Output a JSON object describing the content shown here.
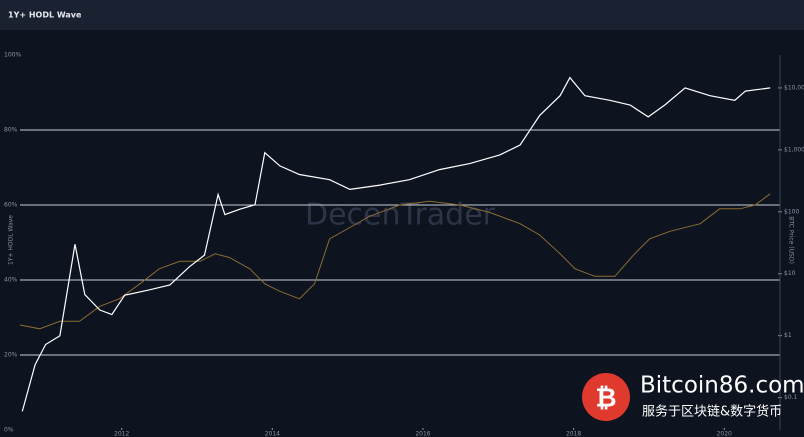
{
  "chart_data": {
    "type": "line",
    "title": "1Y+ HODL Wave",
    "y_label": "1Y+ HODL Wave",
    "y2_label": "BTC Price (USD)",
    "xlim": [
      2010.65,
      2020.74
    ],
    "xticks": [
      2012,
      2014,
      2016,
      2018,
      2020
    ],
    "ylim": [
      0,
      100
    ],
    "yticks": [
      {
        "value": 0,
        "label": "0%"
      },
      {
        "value": 20,
        "label": "20%"
      },
      {
        "value": 40,
        "label": "40%"
      },
      {
        "value": 60,
        "label": "60%"
      },
      {
        "value": 80,
        "label": "80%"
      },
      {
        "value": 100,
        "label": "100%"
      }
    ],
    "y2lim": [
      0.03,
      34000
    ],
    "y2log": true,
    "y2ticks": [
      {
        "value": 0.1,
        "label": "$0.1"
      },
      {
        "value": 1,
        "label": "$1"
      },
      {
        "value": 10,
        "label": "$10"
      },
      {
        "value": 100,
        "label": "$100"
      },
      {
        "value": 1000,
        "label": "$1,000"
      },
      {
        "value": 10000,
        "label": "$10,000"
      }
    ],
    "grid": true,
    "series": [
      {
        "color": "#8a6d32",
        "axis": "y",
        "x": [
          2010.65,
          2010.91,
          2011.18,
          2011.44,
          2011.71,
          2011.97,
          2012.24,
          2012.5,
          2012.77,
          2013.04,
          2013.24,
          2013.43,
          2013.7,
          2013.9,
          2014.1,
          2014.36,
          2014.56,
          2014.76,
          2015.03,
          2015.29,
          2015.69,
          2016.09,
          2016.49,
          2016.89,
          2017.29,
          2017.55,
          2017.82,
          2018.02,
          2018.28,
          2018.55,
          2018.81,
          2019.01,
          2019.28,
          2019.68,
          2019.94,
          2020.21,
          2020.41,
          2020.61
        ],
        "values": [
          28,
          27,
          29,
          29,
          33,
          35,
          39,
          43,
          45,
          45,
          47,
          46,
          43,
          39,
          37,
          35,
          39,
          51,
          54,
          57,
          60,
          61,
          60,
          58,
          55,
          52,
          47,
          43,
          41,
          41,
          47,
          51,
          53,
          55,
          59,
          59,
          60,
          63
        ]
      },
      {
        "color": "#ffffff",
        "axis": "y2",
        "x": [
          2010.68,
          2010.85,
          2010.99,
          2011.18,
          2011.38,
          2011.51,
          2011.71,
          2011.87,
          2012.04,
          2012.37,
          2012.64,
          2012.9,
          2013.1,
          2013.28,
          2013.37,
          2013.57,
          2013.77,
          2013.9,
          2014.1,
          2014.36,
          2014.76,
          2015.03,
          2015.43,
          2015.82,
          2016.22,
          2016.62,
          2017.02,
          2017.29,
          2017.55,
          2017.82,
          2017.95,
          2018.15,
          2018.48,
          2018.75,
          2018.99,
          2019.21,
          2019.48,
          2019.81,
          2020.14,
          2020.28,
          2020.61
        ],
        "values": [
          0.06,
          0.34,
          0.72,
          1,
          30,
          4.6,
          2.6,
          2.2,
          4.5,
          5.5,
          6.6,
          13,
          20,
          190,
          90,
          110,
          130,
          900,
          550,
          400,
          330,
          230,
          270,
          330,
          480,
          600,
          830,
          1200,
          3600,
          7500,
          14700,
          7500,
          6300,
          5300,
          3400,
          5300,
          10000,
          7500,
          6300,
          8900,
          10000
        ]
      }
    ],
    "watermarks": [
      "DecenTrader",
      "Bitcoin86.com",
      "服务于区块链&数字货币"
    ]
  }
}
